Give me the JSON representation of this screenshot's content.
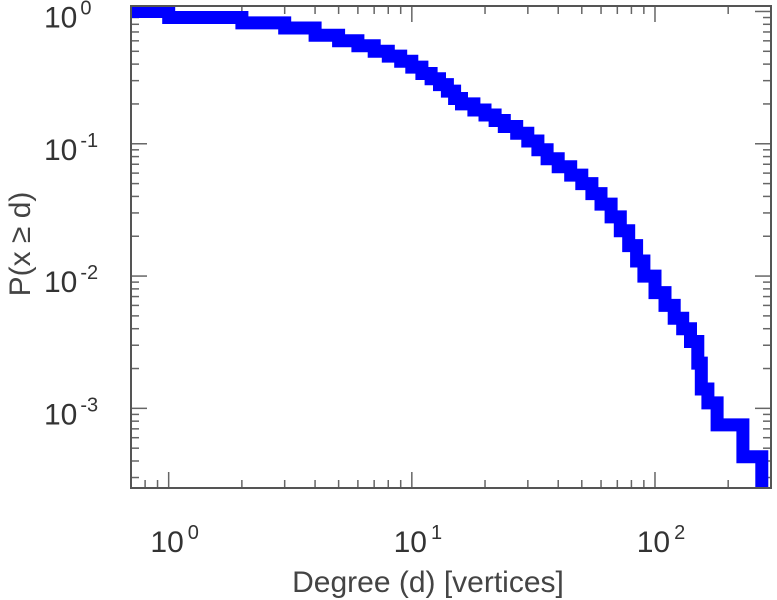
{
  "chart_data": {
    "type": "line",
    "xlabel": "Degree (d) [vertices]",
    "ylabel": "P(x ≥ d)",
    "x_scale": "log",
    "y_scale": "log",
    "xlim": [
      0.7,
      300
    ],
    "ylim": [
      0.00025,
      1.1
    ],
    "grid": false,
    "x_ticks": [
      {
        "base": "10",
        "exp": "0",
        "value": 1
      },
      {
        "base": "10",
        "exp": "1",
        "value": 10
      },
      {
        "base": "10",
        "exp": "2",
        "value": 100
      }
    ],
    "y_ticks": [
      {
        "base": "10",
        "exp": "0",
        "value": 1
      },
      {
        "base": "10",
        "exp": "-1",
        "value": 0.1
      },
      {
        "base": "10",
        "exp": "-2",
        "value": 0.01
      },
      {
        "base": "10",
        "exp": "-3",
        "value": 0.001
      }
    ],
    "series": [
      {
        "color": "#0000ff",
        "step": true,
        "points": [
          [
            0.7,
            1.0
          ],
          [
            1.0,
            1.0
          ],
          [
            1.0,
            0.9
          ],
          [
            2,
            0.9
          ],
          [
            2,
            0.82
          ],
          [
            3,
            0.82
          ],
          [
            3,
            0.75
          ],
          [
            4,
            0.75
          ],
          [
            4,
            0.66
          ],
          [
            5,
            0.66
          ],
          [
            5,
            0.6
          ],
          [
            6,
            0.6
          ],
          [
            6,
            0.55
          ],
          [
            7,
            0.55
          ],
          [
            7,
            0.5
          ],
          [
            8,
            0.5
          ],
          [
            8,
            0.46
          ],
          [
            9,
            0.46
          ],
          [
            9,
            0.42
          ],
          [
            10,
            0.42
          ],
          [
            10,
            0.38
          ],
          [
            11,
            0.38
          ],
          [
            11,
            0.34
          ],
          [
            12,
            0.34
          ],
          [
            12,
            0.31
          ],
          [
            13,
            0.31
          ],
          [
            13,
            0.28
          ],
          [
            14,
            0.28
          ],
          [
            14,
            0.25
          ],
          [
            15,
            0.25
          ],
          [
            15,
            0.22
          ],
          [
            16,
            0.22
          ],
          [
            16,
            0.2
          ],
          [
            18,
            0.2
          ],
          [
            18,
            0.18
          ],
          [
            20,
            0.18
          ],
          [
            20,
            0.165
          ],
          [
            22,
            0.165
          ],
          [
            22,
            0.15
          ],
          [
            24,
            0.15
          ],
          [
            24,
            0.135
          ],
          [
            27,
            0.135
          ],
          [
            27,
            0.12
          ],
          [
            30,
            0.12
          ],
          [
            30,
            0.105
          ],
          [
            33,
            0.105
          ],
          [
            33,
            0.09
          ],
          [
            36,
            0.09
          ],
          [
            36,
            0.077
          ],
          [
            40,
            0.077
          ],
          [
            40,
            0.067
          ],
          [
            45,
            0.067
          ],
          [
            45,
            0.058
          ],
          [
            50,
            0.058
          ],
          [
            50,
            0.05
          ],
          [
            55,
            0.05
          ],
          [
            55,
            0.042
          ],
          [
            60,
            0.042
          ],
          [
            60,
            0.035
          ],
          [
            66,
            0.035
          ],
          [
            66,
            0.028
          ],
          [
            72,
            0.028
          ],
          [
            72,
            0.022
          ],
          [
            78,
            0.022
          ],
          [
            78,
            0.017
          ],
          [
            84,
            0.017
          ],
          [
            84,
            0.013
          ],
          [
            90,
            0.013
          ],
          [
            90,
            0.01
          ],
          [
            100,
            0.01
          ],
          [
            100,
            0.0075
          ],
          [
            110,
            0.0075
          ],
          [
            110,
            0.006
          ],
          [
            120,
            0.006
          ],
          [
            120,
            0.0048
          ],
          [
            130,
            0.0048
          ],
          [
            130,
            0.004
          ],
          [
            140,
            0.004
          ],
          [
            140,
            0.0032
          ],
          [
            150,
            0.0032
          ],
          [
            150,
            0.0022
          ],
          [
            155,
            0.0022
          ],
          [
            155,
            0.0014
          ],
          [
            165,
            0.0014
          ],
          [
            165,
            0.0011
          ],
          [
            180,
            0.0011
          ],
          [
            180,
            0.00075
          ],
          [
            230,
            0.00075
          ],
          [
            230,
            0.00043
          ],
          [
            275,
            0.00043
          ],
          [
            275,
            0.00025
          ]
        ]
      }
    ]
  }
}
